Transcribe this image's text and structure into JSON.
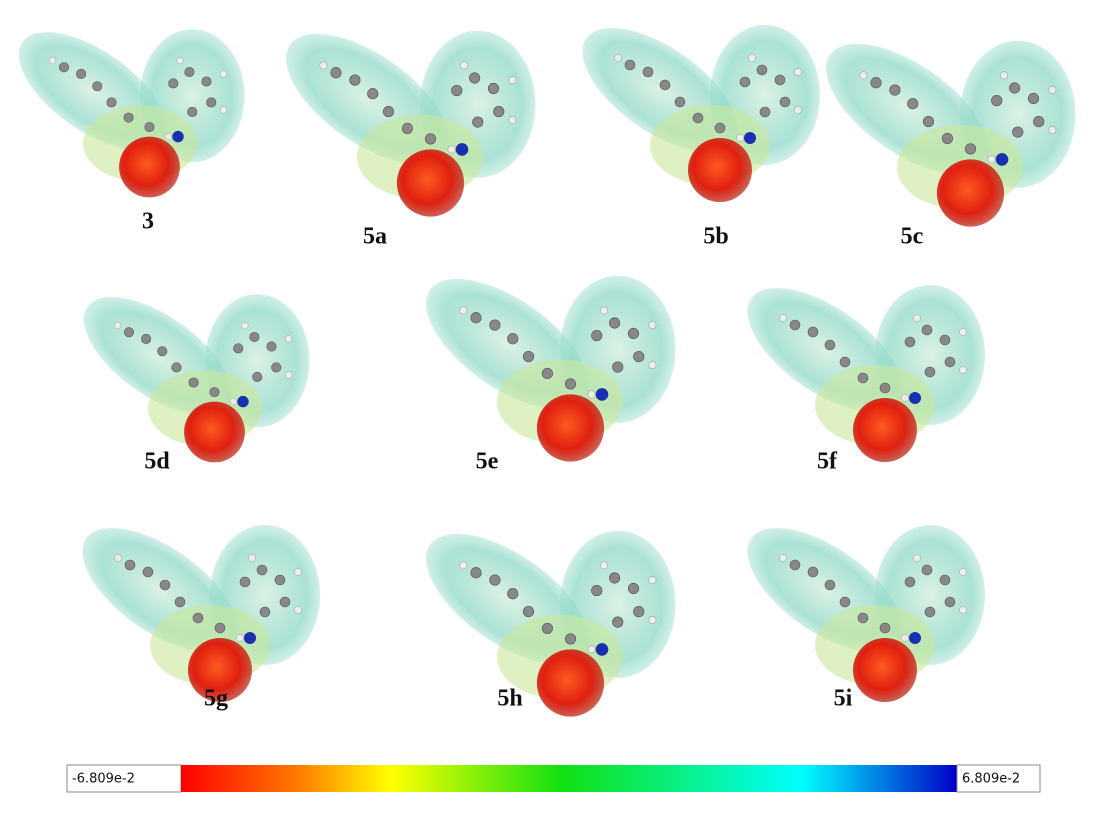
{
  "labels": [
    "3",
    "5a",
    "5b",
    "5c",
    "5d",
    "5e",
    "5f",
    "5g",
    "5h",
    "5i"
  ],
  "colorbar": {
    "min_label": "-6.809e-2",
    "max_label": "6.809e-2"
  }
}
